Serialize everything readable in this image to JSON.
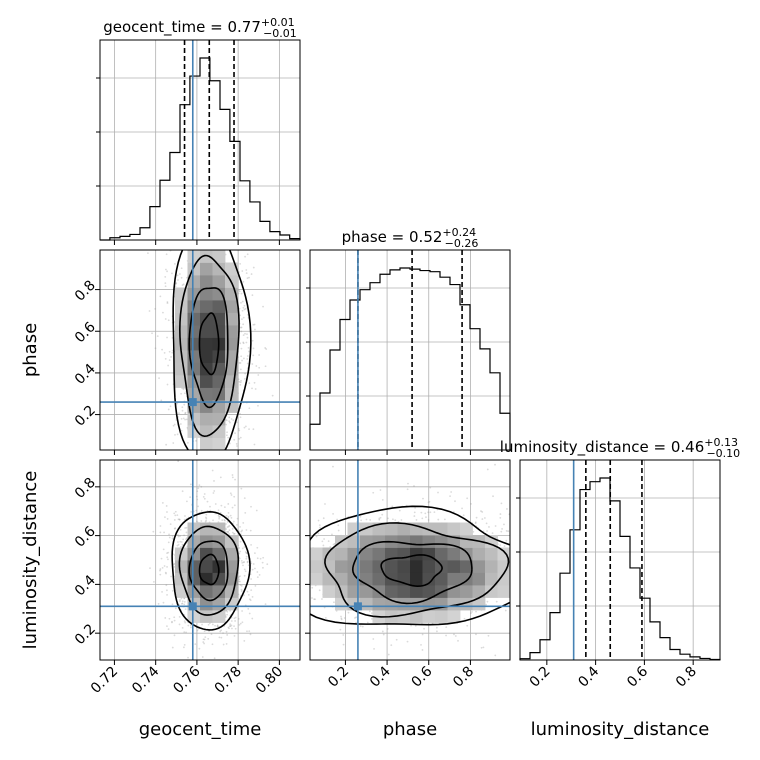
{
  "chart_data": {
    "type": "corner",
    "parameters": [
      "geocent_time",
      "phase",
      "luminosity_distance"
    ],
    "ranges": {
      "geocent_time": [
        0.713,
        0.81
      ],
      "phase": [
        0.03,
        0.99
      ],
      "luminosity_distance": [
        0.09,
        0.91
      ]
    },
    "ticks": {
      "geocent_time": [
        "0.72",
        "0.74",
        "0.76",
        "0.78",
        "0.80"
      ],
      "phase": [
        "0.2",
        "0.4",
        "0.6",
        "0.8"
      ],
      "luminosity_distance": [
        "0.2",
        "0.4",
        "0.6",
        "0.8"
      ]
    },
    "injection": {
      "geocent_time": 0.758,
      "phase": 0.26,
      "luminosity_distance": 0.31
    },
    "summaries": [
      {
        "name": "geocent_time",
        "median": "0.77",
        "plus": "+0.01",
        "minus": "−0.01",
        "q16": 0.754,
        "q50": 0.766,
        "q84": 0.778
      },
      {
        "name": "phase",
        "median": "0.52",
        "plus": "+0.24",
        "minus": "−0.26",
        "q16": 0.26,
        "q50": 0.52,
        "q84": 0.76
      },
      {
        "name": "luminosity_distance",
        "median": "0.46",
        "plus": "+0.13",
        "minus": "−0.10",
        "q16": 0.36,
        "q50": 0.46,
        "q84": 0.59
      }
    ],
    "histograms": {
      "geocent_time": {
        "edges": [
          0.713,
          0.7178,
          0.7227,
          0.7275,
          0.7324,
          0.7372,
          0.7421,
          0.7469,
          0.7518,
          0.7566,
          0.7615,
          0.7663,
          0.7712,
          0.776,
          0.7809,
          0.7857,
          0.7906,
          0.7954,
          0.8003,
          0.805,
          0.81
        ],
        "counts": [
          0,
          8,
          13,
          20,
          44,
          120,
          215,
          315,
          487,
          590,
          655,
          573,
          470,
          355,
          213,
          137,
          67,
          30,
          18,
          5
        ]
      },
      "phase": {
        "edges": [
          0.03,
          0.078,
          0.126,
          0.174,
          0.222,
          0.27,
          0.318,
          0.366,
          0.414,
          0.462,
          0.51,
          0.558,
          0.606,
          0.654,
          0.702,
          0.75,
          0.798,
          0.846,
          0.894,
          0.942,
          0.99
        ],
        "counts": [
          70,
          155,
          272,
          355,
          408,
          436,
          455,
          478,
          490,
          495,
          492,
          488,
          485,
          470,
          450,
          395,
          330,
          275,
          210,
          100
        ]
      },
      "luminosity_distance": {
        "edges": [
          0.09,
          0.131,
          0.172,
          0.213,
          0.254,
          0.295,
          0.336,
          0.377,
          0.418,
          0.459,
          0.5,
          0.541,
          0.582,
          0.623,
          0.664,
          0.705,
          0.746,
          0.787,
          0.828,
          0.869,
          0.91
        ],
        "counts": [
          5,
          28,
          77,
          180,
          330,
          495,
          648,
          678,
          692,
          605,
          470,
          350,
          235,
          145,
          85,
          40,
          22,
          12,
          6,
          2
        ]
      }
    },
    "joint": {
      "phase_vs_geocent_time": {
        "center": [
          0.766,
          0.54
        ],
        "spread": [
          0.0085,
          0.26
        ],
        "levels": [
          "0.5-sigma",
          "1-sigma",
          "1.5-sigma",
          "2-sigma"
        ]
      },
      "luminosity_distance_vs_geocent_time": {
        "center": [
          0.766,
          0.46
        ],
        "spread": [
          0.0085,
          0.11
        ],
        "levels": [
          "0.5-sigma",
          "1-sigma",
          "1.5-sigma",
          "2-sigma"
        ]
      },
      "luminosity_distance_vs_phase": {
        "center": [
          0.52,
          0.46
        ],
        "spread": [
          0.26,
          0.11
        ],
        "levels": [
          "0.5-sigma",
          "1-sigma",
          "1.5-sigma",
          "2-sigma"
        ]
      }
    },
    "colors": {
      "injection": "#4682b4",
      "histogram": "#000000",
      "quantile": "#000000",
      "grid": "#b0b0b0"
    },
    "grid": true
  }
}
